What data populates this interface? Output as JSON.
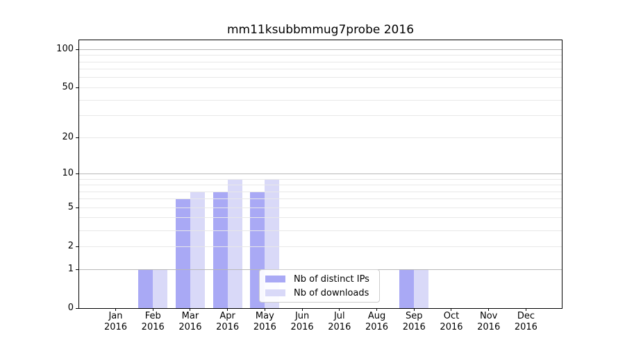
{
  "chart_data": {
    "type": "bar",
    "title": "mm11ksubbmmug7probe 2016",
    "categories": [
      "Jan",
      "Feb",
      "Mar",
      "Apr",
      "May",
      "Jun",
      "Jul",
      "Aug",
      "Sep",
      "Oct",
      "Nov",
      "Dec"
    ],
    "x_tick_second_line": "2016",
    "series": [
      {
        "name": "Nb of distinct IPs",
        "color": "#a9a9f5",
        "values": [
          0,
          1,
          6,
          7,
          7,
          0,
          0,
          0,
          1,
          0,
          0,
          0
        ]
      },
      {
        "name": "Nb of downloads",
        "color": "#d9d9f8",
        "values": [
          0,
          1,
          7,
          9,
          9,
          0,
          0,
          0,
          1,
          0,
          0,
          0
        ]
      }
    ],
    "yscale": "log1p",
    "ylim": [
      0,
      118
    ],
    "y_tick_values": [
      0,
      1,
      2,
      5,
      10,
      20,
      50,
      100
    ],
    "y_major_grid_values": [
      1,
      10,
      100
    ],
    "y_minor_grid_values": [
      2,
      3,
      4,
      5,
      6,
      7,
      8,
      9,
      20,
      30,
      40,
      50,
      60,
      70,
      80,
      90
    ],
    "grid": true,
    "legend_position": "lower center",
    "colors": {
      "grid_major": "#b8b8b8",
      "grid_minor": "#e8e8e8",
      "spine": "#000000",
      "text": "#000000",
      "legend_border": "#cccccc",
      "legend_background": "#ffffff"
    }
  }
}
